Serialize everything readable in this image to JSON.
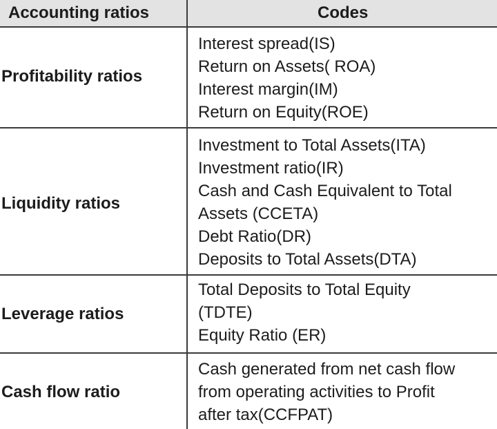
{
  "table": {
    "headers": {
      "category": "Accounting ratios",
      "codes": "Codes"
    },
    "rows": [
      {
        "category": "Profitability ratios",
        "codes": [
          "Interest spread(IS)",
          "Return on Assets( ROA)",
          "Interest margin(IM)",
          "Return on Equity(ROE)"
        ]
      },
      {
        "category": "Liquidity ratios",
        "codes": [
          "Investment to Total Assets(ITA)",
          "Investment ratio(IR)",
          "Cash and Cash Equivalent to Total",
          "Assets (CCETA)",
          "Debt Ratio(DR)",
          "Deposits to Total Assets(DTA)"
        ]
      },
      {
        "category": "Leverage ratios",
        "codes": [
          "Total Deposits to Total Equity",
          "(TDTE)",
          "Equity Ratio (ER)"
        ]
      },
      {
        "category": "Cash flow ratio",
        "codes": [
          "Cash generated from net cash flow",
          "from operating activities to Profit",
          "after tax(CCFPAT)"
        ]
      }
    ]
  }
}
